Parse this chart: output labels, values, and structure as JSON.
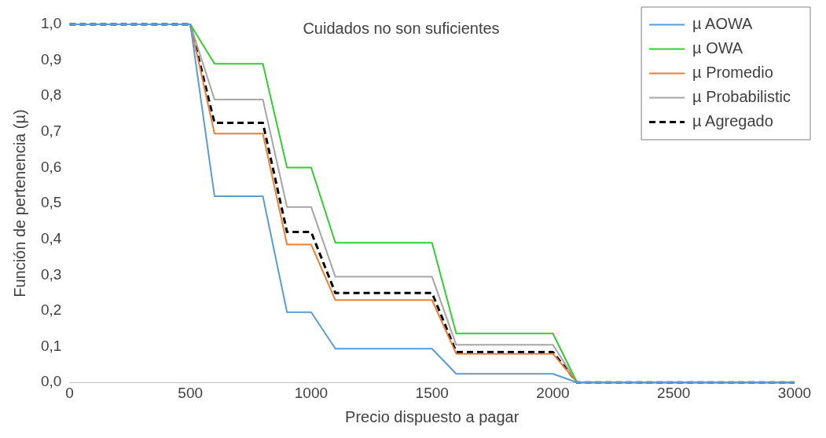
{
  "chart_data": {
    "type": "line",
    "title": "Cuidados no son suficientes",
    "xlabel": "Precio dispuesto a pagar",
    "ylabel": "Función de pertenencia (µ)",
    "x": [
      0,
      500,
      600,
      800,
      900,
      1000,
      1100,
      1500,
      1600,
      2000,
      2100,
      3000
    ],
    "series": [
      {
        "name": "µ AOWA",
        "color": "#5b9bd5",
        "values": [
          1,
          1,
          0.52,
          0.52,
          0.196,
          0.196,
          0.094,
          0.094,
          0.024,
          0.024,
          0,
          0
        ]
      },
      {
        "name": "µ OWA",
        "color": "#33cc33",
        "values": [
          1,
          1,
          0.89,
          0.89,
          0.6,
          0.6,
          0.39,
          0.39,
          0.137,
          0.137,
          0,
          0
        ]
      },
      {
        "name": "µ Promedio",
        "color": "#ed7d31",
        "values": [
          1,
          1,
          0.695,
          0.695,
          0.385,
          0.385,
          0.23,
          0.23,
          0.08,
          0.08,
          0,
          0
        ]
      },
      {
        "name": "µ Probabilistic",
        "color": "#a5a5a5",
        "values": [
          1,
          1,
          0.79,
          0.79,
          0.49,
          0.49,
          0.295,
          0.295,
          0.105,
          0.105,
          0,
          0
        ]
      },
      {
        "name": "µ Agregado",
        "color": "#000000",
        "line_style": "dashed",
        "values": [
          1,
          1,
          0.725,
          0.725,
          0.42,
          0.42,
          0.25,
          0.25,
          0.085,
          0.085,
          0,
          0
        ]
      }
    ],
    "xlim": [
      0,
      3000
    ],
    "xticks": [
      0,
      500,
      1000,
      1500,
      2000,
      2500,
      3000
    ],
    "ylim": [
      0,
      1
    ],
    "yticks": [
      {
        "value": 0,
        "label": "0,0"
      },
      {
        "value": 0.1,
        "label": "0,1"
      },
      {
        "value": 0.2,
        "label": "0,2"
      },
      {
        "value": 0.3,
        "label": "0,3"
      },
      {
        "value": 0.4,
        "label": "0,4"
      },
      {
        "value": 0.5,
        "label": "0,5"
      },
      {
        "value": 0.6,
        "label": "0,6"
      },
      {
        "value": 0.7,
        "label": "0,7"
      },
      {
        "value": 0.8,
        "label": "0,8"
      },
      {
        "value": 0.9,
        "label": "0,9"
      },
      {
        "value": 1,
        "label": "1,0"
      }
    ],
    "grid": false,
    "legend": "top right",
    "marker": "none"
  }
}
